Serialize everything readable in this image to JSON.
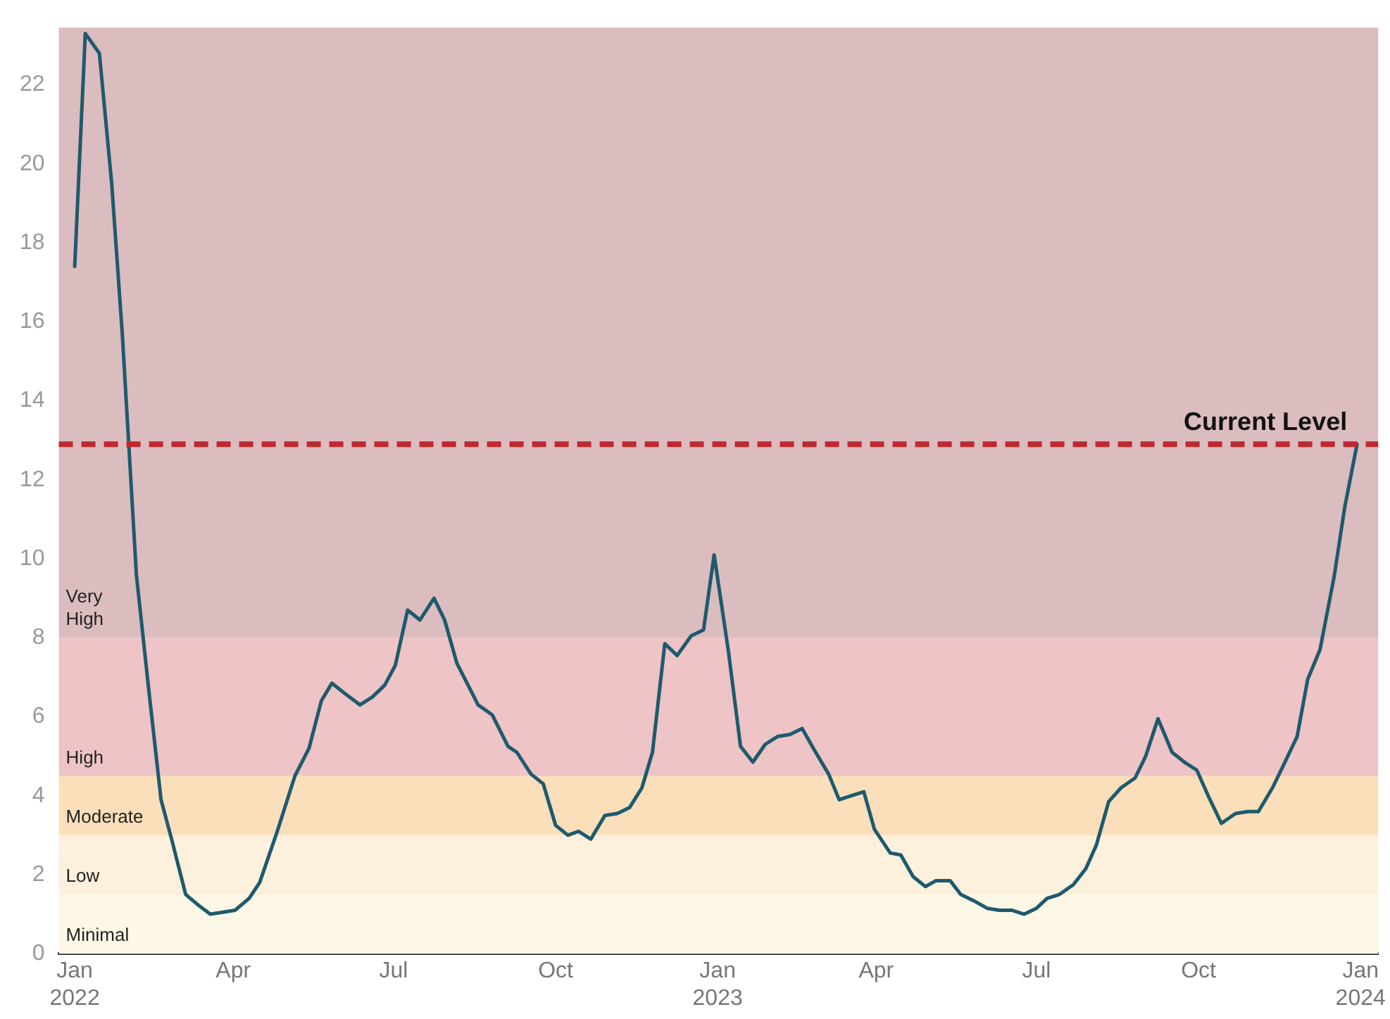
{
  "chart_data": {
    "type": "line",
    "x": [
      "2022-01-01",
      "2022-01-07",
      "2022-01-15",
      "2022-01-22",
      "2022-01-28",
      "2022-02-02",
      "2022-02-05",
      "2022-02-12",
      "2022-02-19",
      "2022-02-25",
      "2022-03-05",
      "2022-03-13",
      "2022-03-19",
      "2022-04-02",
      "2022-04-10",
      "2022-04-16",
      "2022-04-26",
      "2022-05-06",
      "2022-05-14",
      "2022-05-21",
      "2022-05-27",
      "2022-06-03",
      "2022-06-12",
      "2022-06-19",
      "2022-06-26",
      "2022-07-02",
      "2022-07-09",
      "2022-07-16",
      "2022-07-24",
      "2022-07-30",
      "2022-08-06",
      "2022-08-18",
      "2022-08-26",
      "2022-09-04",
      "2022-09-09",
      "2022-09-17",
      "2022-09-24",
      "2022-10-01",
      "2022-10-08",
      "2022-10-14",
      "2022-10-21",
      "2022-10-29",
      "2022-11-05",
      "2022-11-12",
      "2022-11-19",
      "2022-11-25",
      "2022-12-02",
      "2022-12-09",
      "2022-12-17",
      "2022-12-24",
      "2022-12-30",
      "2023-01-07",
      "2023-01-14",
      "2023-01-21",
      "2023-01-28",
      "2023-02-04",
      "2023-02-11",
      "2023-02-18",
      "2023-02-25",
      "2023-03-05",
      "2023-03-11",
      "2023-03-18",
      "2023-03-25",
      "2023-03-31",
      "2023-04-09",
      "2023-04-15",
      "2023-04-22",
      "2023-04-29",
      "2023-05-05",
      "2023-05-13",
      "2023-05-19",
      "2023-05-26",
      "2023-06-03",
      "2023-06-10",
      "2023-06-17",
      "2023-06-24",
      "2023-07-01",
      "2023-07-07",
      "2023-07-14",
      "2023-07-22",
      "2023-07-29",
      "2023-08-04",
      "2023-08-11",
      "2023-08-18",
      "2023-08-26",
      "2023-09-01",
      "2023-09-08",
      "2023-09-16",
      "2023-09-23",
      "2023-09-30",
      "2023-10-07",
      "2023-10-14",
      "2023-10-22",
      "2023-10-29",
      "2023-11-04",
      "2023-11-12",
      "2023-11-18",
      "2023-11-26",
      "2023-12-02",
      "2023-12-09",
      "2023-12-17",
      "2023-12-23",
      "2023-12-30"
    ],
    "series": [
      {
        "color": "#1e5a6e",
        "values": [
          17.4,
          23.3,
          22.8,
          19.5,
          15.7,
          11.9,
          9.6,
          6.7,
          3.9,
          2.9,
          1.5,
          1.2,
          1.0,
          1.1,
          1.4,
          1.8,
          3.1,
          4.5,
          5.2,
          6.4,
          6.85,
          6.6,
          6.3,
          6.5,
          6.8,
          7.3,
          8.7,
          8.45,
          9.0,
          8.45,
          7.35,
          6.3,
          6.05,
          5.25,
          5.1,
          4.55,
          4.3,
          3.25,
          3.0,
          3.1,
          2.9,
          3.5,
          3.55,
          3.7,
          4.2,
          5.1,
          7.85,
          7.55,
          8.05,
          8.2,
          10.1,
          7.7,
          5.25,
          4.85,
          5.3,
          5.5,
          5.55,
          5.7,
          5.15,
          4.55,
          3.9,
          4.0,
          4.1,
          3.15,
          2.55,
          2.5,
          1.95,
          1.7,
          1.85,
          1.85,
          1.5,
          1.35,
          1.15,
          1.1,
          1.1,
          1.0,
          1.15,
          1.4,
          1.5,
          1.75,
          2.15,
          2.75,
          3.85,
          4.2,
          4.45,
          5.0,
          5.95,
          5.1,
          4.85,
          4.65,
          3.95,
          3.3,
          3.55,
          3.6,
          3.6,
          4.2,
          4.75,
          5.5,
          6.95,
          7.7,
          9.55,
          11.3,
          12.9
        ]
      }
    ],
    "xlim": [
      "2021-12-23",
      "2024-01-11"
    ],
    "xticks": [
      {
        "value": "2022-01-01",
        "label": "Jan 2022"
      },
      {
        "value": "2022-04-01",
        "label": "Apr"
      },
      {
        "value": "2022-07-01",
        "label": "Jul"
      },
      {
        "value": "2022-10-01",
        "label": "Oct"
      },
      {
        "value": "2023-01-01",
        "label": "Jan 2023"
      },
      {
        "value": "2023-04-01",
        "label": "Apr"
      },
      {
        "value": "2023-07-01",
        "label": "Jul"
      },
      {
        "value": "2023-10-01",
        "label": "Oct"
      },
      {
        "value": "2024-01-01",
        "label": "Jan 2024"
      }
    ],
    "ylim": [
      0,
      23.45
    ],
    "yticks": [
      0,
      2,
      4,
      6,
      8,
      10,
      12,
      14,
      16,
      18,
      20,
      22
    ],
    "bands": [
      {
        "axis": "y",
        "from": 0,
        "to": 1.5,
        "label": "Minimal",
        "color": "#fdf8e6"
      },
      {
        "axis": "y",
        "from": 1.5,
        "to": 3,
        "label": "Low",
        "color": "#fdf0dc"
      },
      {
        "axis": "y",
        "from": 3,
        "to": 4.5,
        "label": "Moderate",
        "color": "#fbdfba"
      },
      {
        "axis": "y",
        "from": 4.5,
        "to": 8,
        "label": "High",
        "color": "#eec4c6"
      },
      {
        "axis": "y",
        "from": 8,
        "to": 23.45,
        "label": "Very High",
        "color": "#dbbcbf"
      }
    ],
    "ref_lines": [
      {
        "axis": "y",
        "value": 12.9,
        "label": "Current Level",
        "color": "#c0282d",
        "line_style": "dashed"
      }
    ],
    "grid": false,
    "legend": false,
    "marker": "none",
    "line_style": "solid"
  }
}
